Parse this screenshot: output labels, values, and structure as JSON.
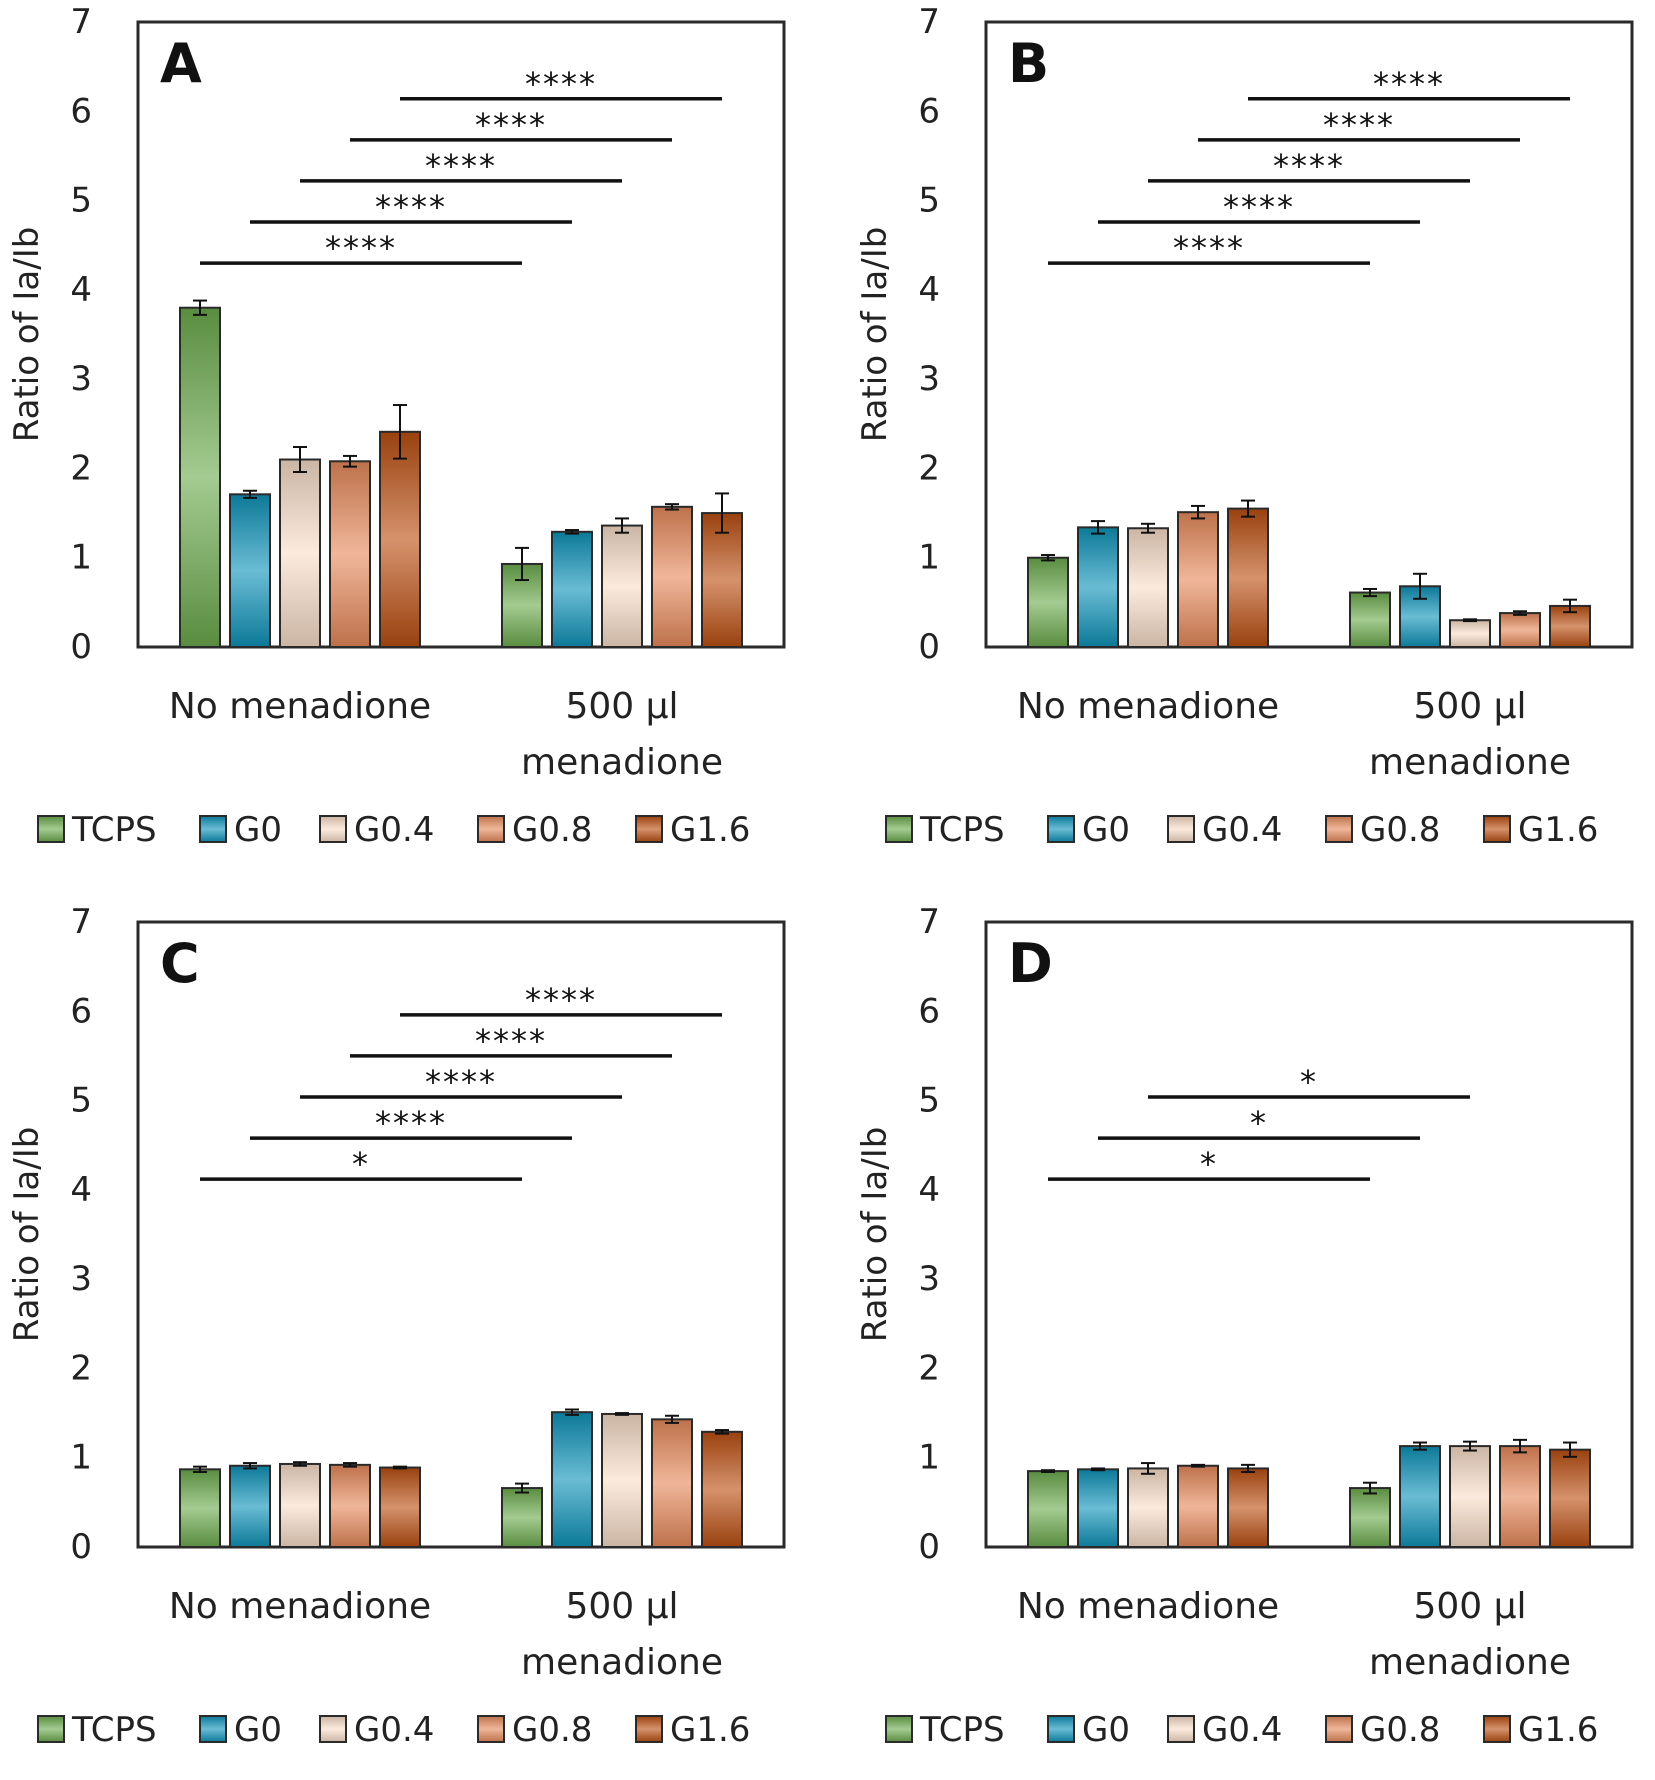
{
  "chart_data": [
    {
      "type": "bar",
      "panel_label": "A",
      "ylabel": "Ratio of Ia/Ib",
      "ylim": [
        0,
        7
      ],
      "yticks": [
        "0",
        "1",
        "2",
        "3",
        "4",
        "5",
        "6",
        "7"
      ],
      "groups": [
        [
          "No menadione"
        ],
        [
          "500 µl",
          "menadione"
        ]
      ],
      "series": [
        {
          "name": "TCPS",
          "values": [
            3.8,
            0.93
          ],
          "errors": [
            0.08,
            0.18
          ]
        },
        {
          "name": "G0",
          "values": [
            1.71,
            1.29
          ],
          "errors": [
            0.04,
            0.02
          ]
        },
        {
          "name": "G0.4",
          "values": [
            2.1,
            1.36
          ],
          "errors": [
            0.14,
            0.08
          ]
        },
        {
          "name": "G0.8",
          "values": [
            2.08,
            1.57
          ],
          "errors": [
            0.06,
            0.03
          ]
        },
        {
          "name": "G1.6",
          "values": [
            2.41,
            1.5
          ],
          "errors": [
            0.3,
            0.22
          ]
        }
      ],
      "significance": [
        {
          "from": "TCPS",
          "y": 4.3,
          "label": "****"
        },
        {
          "from": "G0",
          "y": 4.76,
          "label": "****"
        },
        {
          "from": "G0.4",
          "y": 5.22,
          "label": "****"
        },
        {
          "from": "G0.8",
          "y": 5.68,
          "label": "****"
        },
        {
          "from": "G1.6",
          "y": 6.14,
          "label": "****"
        }
      ],
      "legend_placement": "bottom"
    },
    {
      "type": "bar",
      "panel_label": "B",
      "ylabel": "Ratio of Ia/Ib",
      "ylim": [
        0,
        7
      ],
      "yticks": [
        "0",
        "1",
        "2",
        "3",
        "4",
        "5",
        "6",
        "7"
      ],
      "groups": [
        [
          "No menadione"
        ],
        [
          "500 µl",
          "menadione"
        ]
      ],
      "series": [
        {
          "name": "TCPS",
          "values": [
            1.0,
            0.61
          ],
          "errors": [
            0.03,
            0.04
          ]
        },
        {
          "name": "G0",
          "values": [
            1.34,
            0.68
          ],
          "errors": [
            0.07,
            0.14
          ]
        },
        {
          "name": "G0.4",
          "values": [
            1.33,
            0.3
          ],
          "errors": [
            0.05,
            0.01
          ]
        },
        {
          "name": "G0.8",
          "values": [
            1.51,
            0.38
          ],
          "errors": [
            0.07,
            0.02
          ]
        },
        {
          "name": "G1.6",
          "values": [
            1.55,
            0.46
          ],
          "errors": [
            0.09,
            0.07
          ]
        }
      ],
      "significance": [
        {
          "from": "TCPS",
          "y": 4.3,
          "label": "****"
        },
        {
          "from": "G0",
          "y": 4.76,
          "label": "****"
        },
        {
          "from": "G0.4",
          "y": 5.22,
          "label": "****"
        },
        {
          "from": "G0.8",
          "y": 5.68,
          "label": "****"
        },
        {
          "from": "G1.6",
          "y": 6.14,
          "label": "****"
        }
      ],
      "legend_placement": "bottom"
    },
    {
      "type": "bar",
      "panel_label": "C",
      "ylabel": "Ratio of Ia/Ib",
      "ylim": [
        0,
        7
      ],
      "yticks": [
        "0",
        "1",
        "2",
        "3",
        "4",
        "5",
        "6",
        "7"
      ],
      "groups": [
        [
          "No menadione"
        ],
        [
          "500 µl",
          "menadione"
        ]
      ],
      "series": [
        {
          "name": "TCPS",
          "values": [
            0.87,
            0.66
          ],
          "errors": [
            0.03,
            0.05
          ]
        },
        {
          "name": "G0",
          "values": [
            0.91,
            1.51
          ],
          "errors": [
            0.03,
            0.03
          ]
        },
        {
          "name": "G0.4",
          "values": [
            0.93,
            1.49
          ],
          "errors": [
            0.02,
            0.01
          ]
        },
        {
          "name": "G0.8",
          "values": [
            0.92,
            1.43
          ],
          "errors": [
            0.02,
            0.04
          ]
        },
        {
          "name": "G1.6",
          "values": [
            0.89,
            1.29
          ],
          "errors": [
            0.01,
            0.02
          ]
        }
      ],
      "significance": [
        {
          "from": "TCPS",
          "y": 4.12,
          "label": "*"
        },
        {
          "from": "G0",
          "y": 4.58,
          "label": "****"
        },
        {
          "from": "G0.4",
          "y": 5.04,
          "label": "****"
        },
        {
          "from": "G0.8",
          "y": 5.5,
          "label": "****"
        },
        {
          "from": "G1.6",
          "y": 5.96,
          "label": "****"
        }
      ],
      "legend_placement": "bottom"
    },
    {
      "type": "bar",
      "panel_label": "D",
      "ylabel": "Ratio of Ia/Ib",
      "ylim": [
        0,
        7
      ],
      "yticks": [
        "0",
        "1",
        "2",
        "3",
        "4",
        "5",
        "6",
        "7"
      ],
      "groups": [
        [
          "No menadione"
        ],
        [
          "500 µl",
          "menadione"
        ]
      ],
      "series": [
        {
          "name": "TCPS",
          "values": [
            0.85,
            0.66
          ],
          "errors": [
            0.01,
            0.06
          ]
        },
        {
          "name": "G0",
          "values": [
            0.87,
            1.13
          ],
          "errors": [
            0.01,
            0.04
          ]
        },
        {
          "name": "G0.4",
          "values": [
            0.88,
            1.13
          ],
          "errors": [
            0.06,
            0.05
          ]
        },
        {
          "name": "G0.8",
          "values": [
            0.91,
            1.13
          ],
          "errors": [
            0.01,
            0.07
          ]
        },
        {
          "name": "G1.6",
          "values": [
            0.88,
            1.09
          ],
          "errors": [
            0.04,
            0.08
          ]
        }
      ],
      "significance": [
        {
          "from": "TCPS",
          "y": 4.12,
          "label": "*"
        },
        {
          "from": "G0",
          "y": 4.58,
          "label": "*"
        },
        {
          "from": "G0.4",
          "y": 5.04,
          "label": "*"
        }
      ],
      "legend_placement": "bottom"
    }
  ],
  "colors": {
    "TCPS": "#6cab4e",
    "G0": "#0f93b9",
    "G0.4": "#f8ddc8",
    "G0.8": "#e68a5b",
    "G1.6": "#bb4f12"
  }
}
